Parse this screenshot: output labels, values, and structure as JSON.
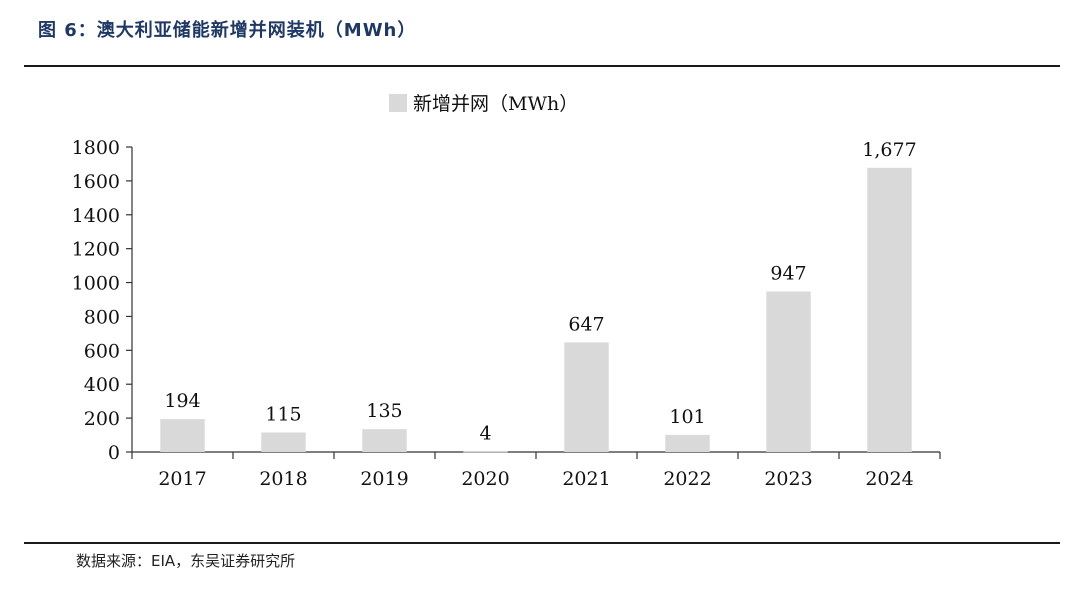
{
  "figure": {
    "title": "图 6：澳大利亚储能新增并网装机（MWh）",
    "source": "数据来源：EIA，东吴证券研究所"
  },
  "chart_data": {
    "type": "bar",
    "categories": [
      "2017",
      "2018",
      "2019",
      "2020",
      "2021",
      "2022",
      "2023",
      "2024"
    ],
    "series": [
      {
        "name": "新增并网（MWh）",
        "values": [
          194,
          115,
          135,
          4,
          647,
          101,
          947,
          1677
        ]
      }
    ],
    "data_labels": [
      "194",
      "115",
      "135",
      "4",
      "647",
      "101",
      "947",
      "1,677"
    ],
    "ylim": [
      0,
      1800
    ],
    "yticks": [
      0,
      200,
      400,
      600,
      800,
      1000,
      1200,
      1400,
      1600,
      1800
    ],
    "legend": "top-center",
    "grid": false,
    "bar_color": "#d9d9d9"
  }
}
